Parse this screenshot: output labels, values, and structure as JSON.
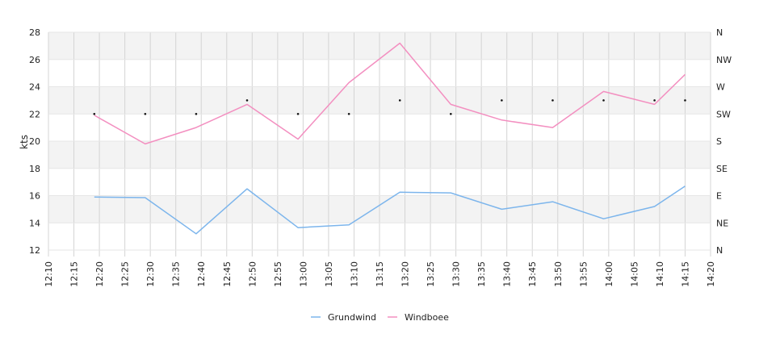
{
  "chart_data": {
    "type": "line",
    "ylabel": "kts",
    "ylim": [
      12,
      28
    ],
    "y_ticks": [
      "12",
      "14",
      "16",
      "18",
      "20",
      "22",
      "24",
      "26",
      "28"
    ],
    "x_ticks": [
      "12:10",
      "12:15",
      "12:20",
      "12:25",
      "12:30",
      "12:35",
      "12:40",
      "12:45",
      "12:50",
      "12:55",
      "13:00",
      "13:05",
      "13:10",
      "13:15",
      "13:20",
      "13:25",
      "13:30",
      "13:35",
      "13:40",
      "13:45",
      "13:50",
      "13:55",
      "14:00",
      "14:05",
      "14:10",
      "14:15",
      "14:20"
    ],
    "xlim": [
      "12:10",
      "14:20"
    ],
    "right_axis_ticks": [
      "N",
      "NE",
      "E",
      "SE",
      "S",
      "SW",
      "W",
      "NW",
      "N"
    ],
    "grid": true,
    "legend_position": "bottom",
    "x": [
      "12:19",
      "12:29",
      "12:39",
      "12:49",
      "12:59",
      "13:09",
      "13:19",
      "13:29",
      "13:39",
      "13:49",
      "13:59",
      "14:09",
      "14:15"
    ],
    "series": [
      {
        "name": "Grundwind",
        "color": "#7cb5ec",
        "values": [
          15.9,
          15.85,
          13.2,
          16.5,
          13.65,
          13.85,
          16.25,
          16.2,
          15.0,
          15.55,
          14.3,
          15.2,
          16.7
        ]
      },
      {
        "name": "Windboee",
        "color": "#f38fc0",
        "values": [
          21.9,
          19.8,
          21.0,
          22.7,
          20.15,
          24.3,
          27.2,
          22.7,
          21.55,
          21.0,
          23.65,
          22.7,
          24.9
        ]
      }
    ],
    "direction_markers": {
      "label_index_values": [
        5,
        5,
        5,
        5.5,
        5,
        5,
        5.5,
        5,
        5.5,
        5.5,
        5.5,
        5.5,
        5.5
      ]
    }
  }
}
